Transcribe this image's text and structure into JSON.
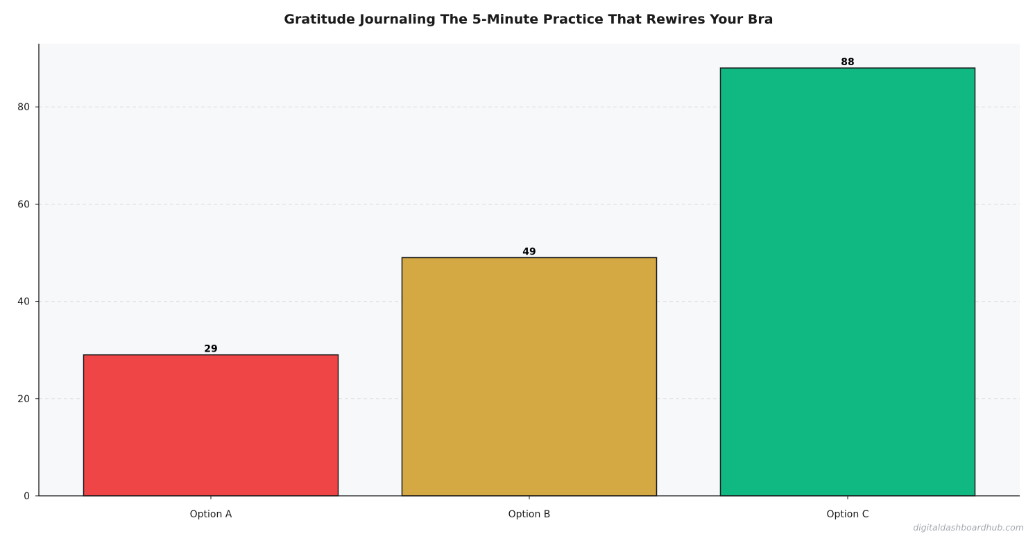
{
  "chart_data": {
    "type": "bar",
    "title": "Gratitude Journaling  The 5-Minute Practice That Rewires Your Bra",
    "xlabel": "",
    "ylabel": "",
    "categories": [
      "Option A",
      "Option B",
      "Option C"
    ],
    "values": [
      29,
      49,
      88
    ],
    "value_labels": [
      "29",
      "49",
      "88"
    ],
    "colors": [
      "#ef4547",
      "#d4a843",
      "#10b981"
    ],
    "ylim": [
      0,
      93
    ],
    "yticks": [
      0,
      20,
      40,
      60,
      80
    ],
    "ytick_labels": [
      "0",
      "20",
      "40",
      "60",
      "80"
    ],
    "grid": true,
    "grid_axis": "y",
    "legend": "none"
  },
  "watermark": "digitaldashboardhub.com",
  "style": {
    "plot_background": "#f7f8fa",
    "grid_color": "#dcdfe3",
    "axis_color": "#1a1a1a",
    "bar_edge_color": "#1a1a1a"
  }
}
